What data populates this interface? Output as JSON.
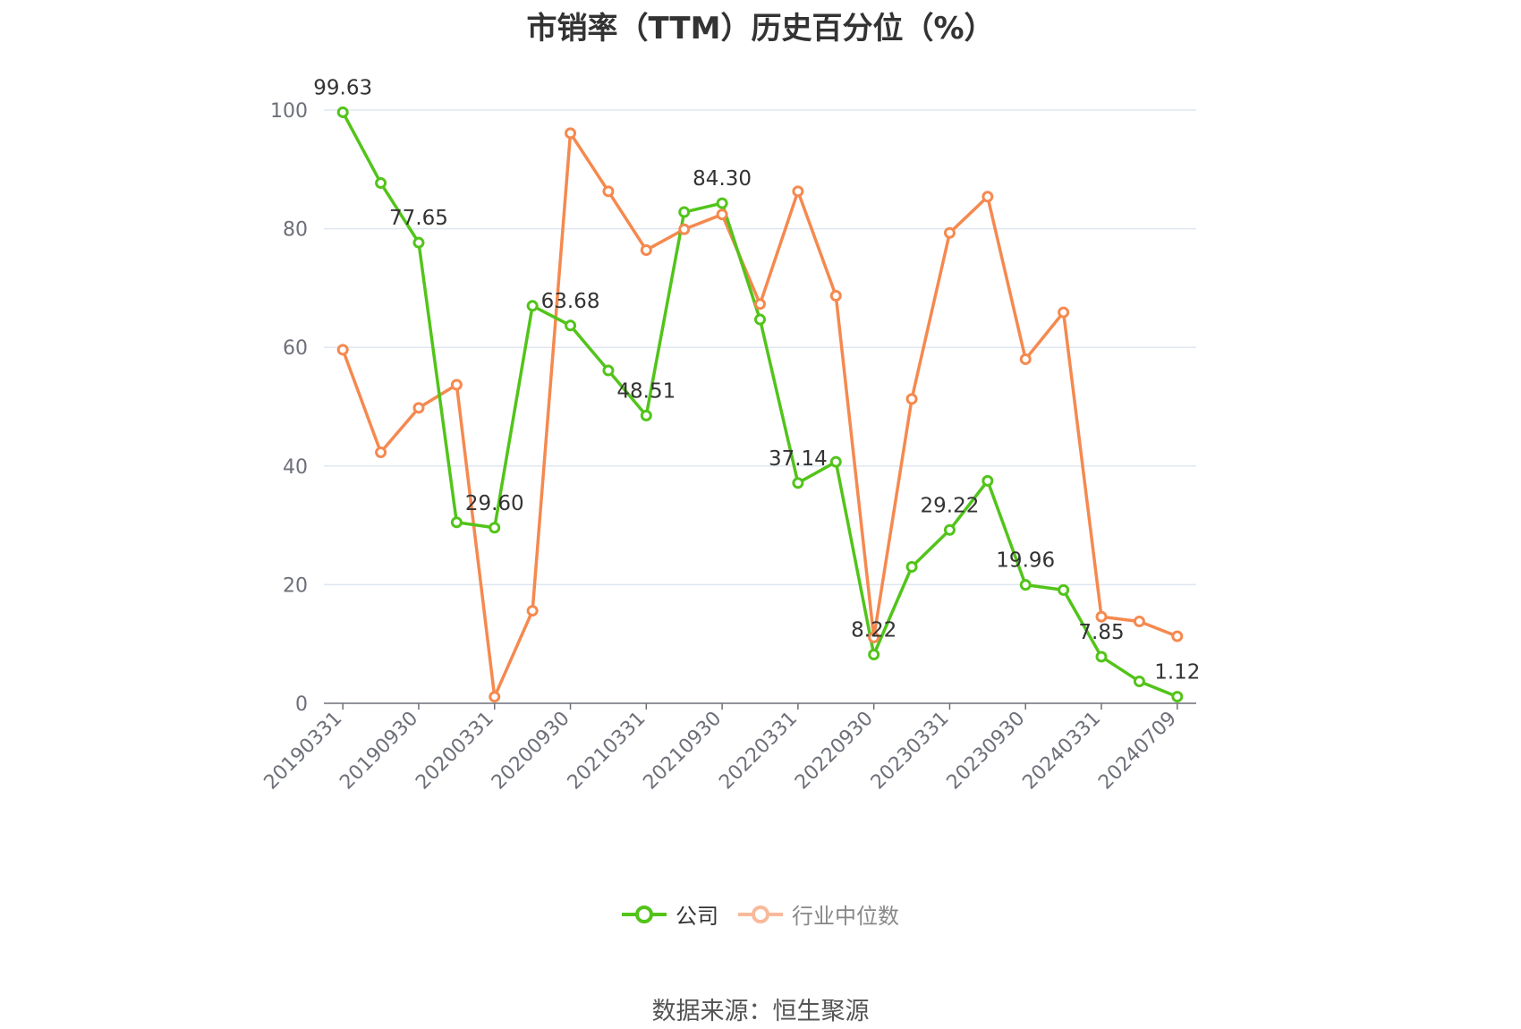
{
  "chart_data": {
    "type": "line",
    "title": "市销率（TTM）历史百分位（%）",
    "xlabel": "",
    "ylabel": "",
    "ylim": [
      0,
      100
    ],
    "yticks": [
      0,
      20,
      40,
      60,
      80,
      100
    ],
    "grid": true,
    "legend_position": "bottom",
    "tick_labels": [
      "20190331",
      "20190930",
      "20200331",
      "20200930",
      "20210331",
      "20210930",
      "20220331",
      "20220930",
      "20230331",
      "20230930",
      "20240331",
      "20240709"
    ],
    "x": [
      "20190331",
      "20190630",
      "20190930",
      "20191231",
      "20200331",
      "20200630",
      "20200930",
      "20201231",
      "20210331",
      "20210630",
      "20210930",
      "20211231",
      "20220331",
      "20220630",
      "20220930",
      "20221231",
      "20230331",
      "20230630",
      "20230930",
      "20231231",
      "20240331",
      "20240630",
      "20240709"
    ],
    "series": [
      {
        "name": "公司",
        "color": "#52c41a",
        "values": [
          99.63,
          87.7,
          77.65,
          30.5,
          29.6,
          67.0,
          63.68,
          56.1,
          48.51,
          82.8,
          84.3,
          64.7,
          37.14,
          40.7,
          8.22,
          23.0,
          29.22,
          37.5,
          19.96,
          19.1,
          7.85,
          3.7,
          1.12
        ],
        "labels": {
          "0": "99.63",
          "2": "77.65",
          "4": "29.60",
          "6": "63.68",
          "8": "48.51",
          "10": "84.30",
          "12": "37.14",
          "14": "8.22",
          "16": "29.22",
          "18": "19.96",
          "20": "7.85",
          "22": "1.12"
        }
      },
      {
        "name": "行业中位数",
        "color": "#f5894f",
        "values": [
          59.6,
          42.3,
          49.8,
          53.7,
          1.1,
          15.6,
          96.1,
          86.3,
          76.4,
          79.9,
          82.4,
          67.3,
          86.3,
          68.7,
          11.1,
          51.3,
          79.3,
          85.4,
          58.0,
          65.9,
          14.6,
          13.8,
          11.3
        ]
      }
    ]
  },
  "source": "数据来源：恒生聚源"
}
